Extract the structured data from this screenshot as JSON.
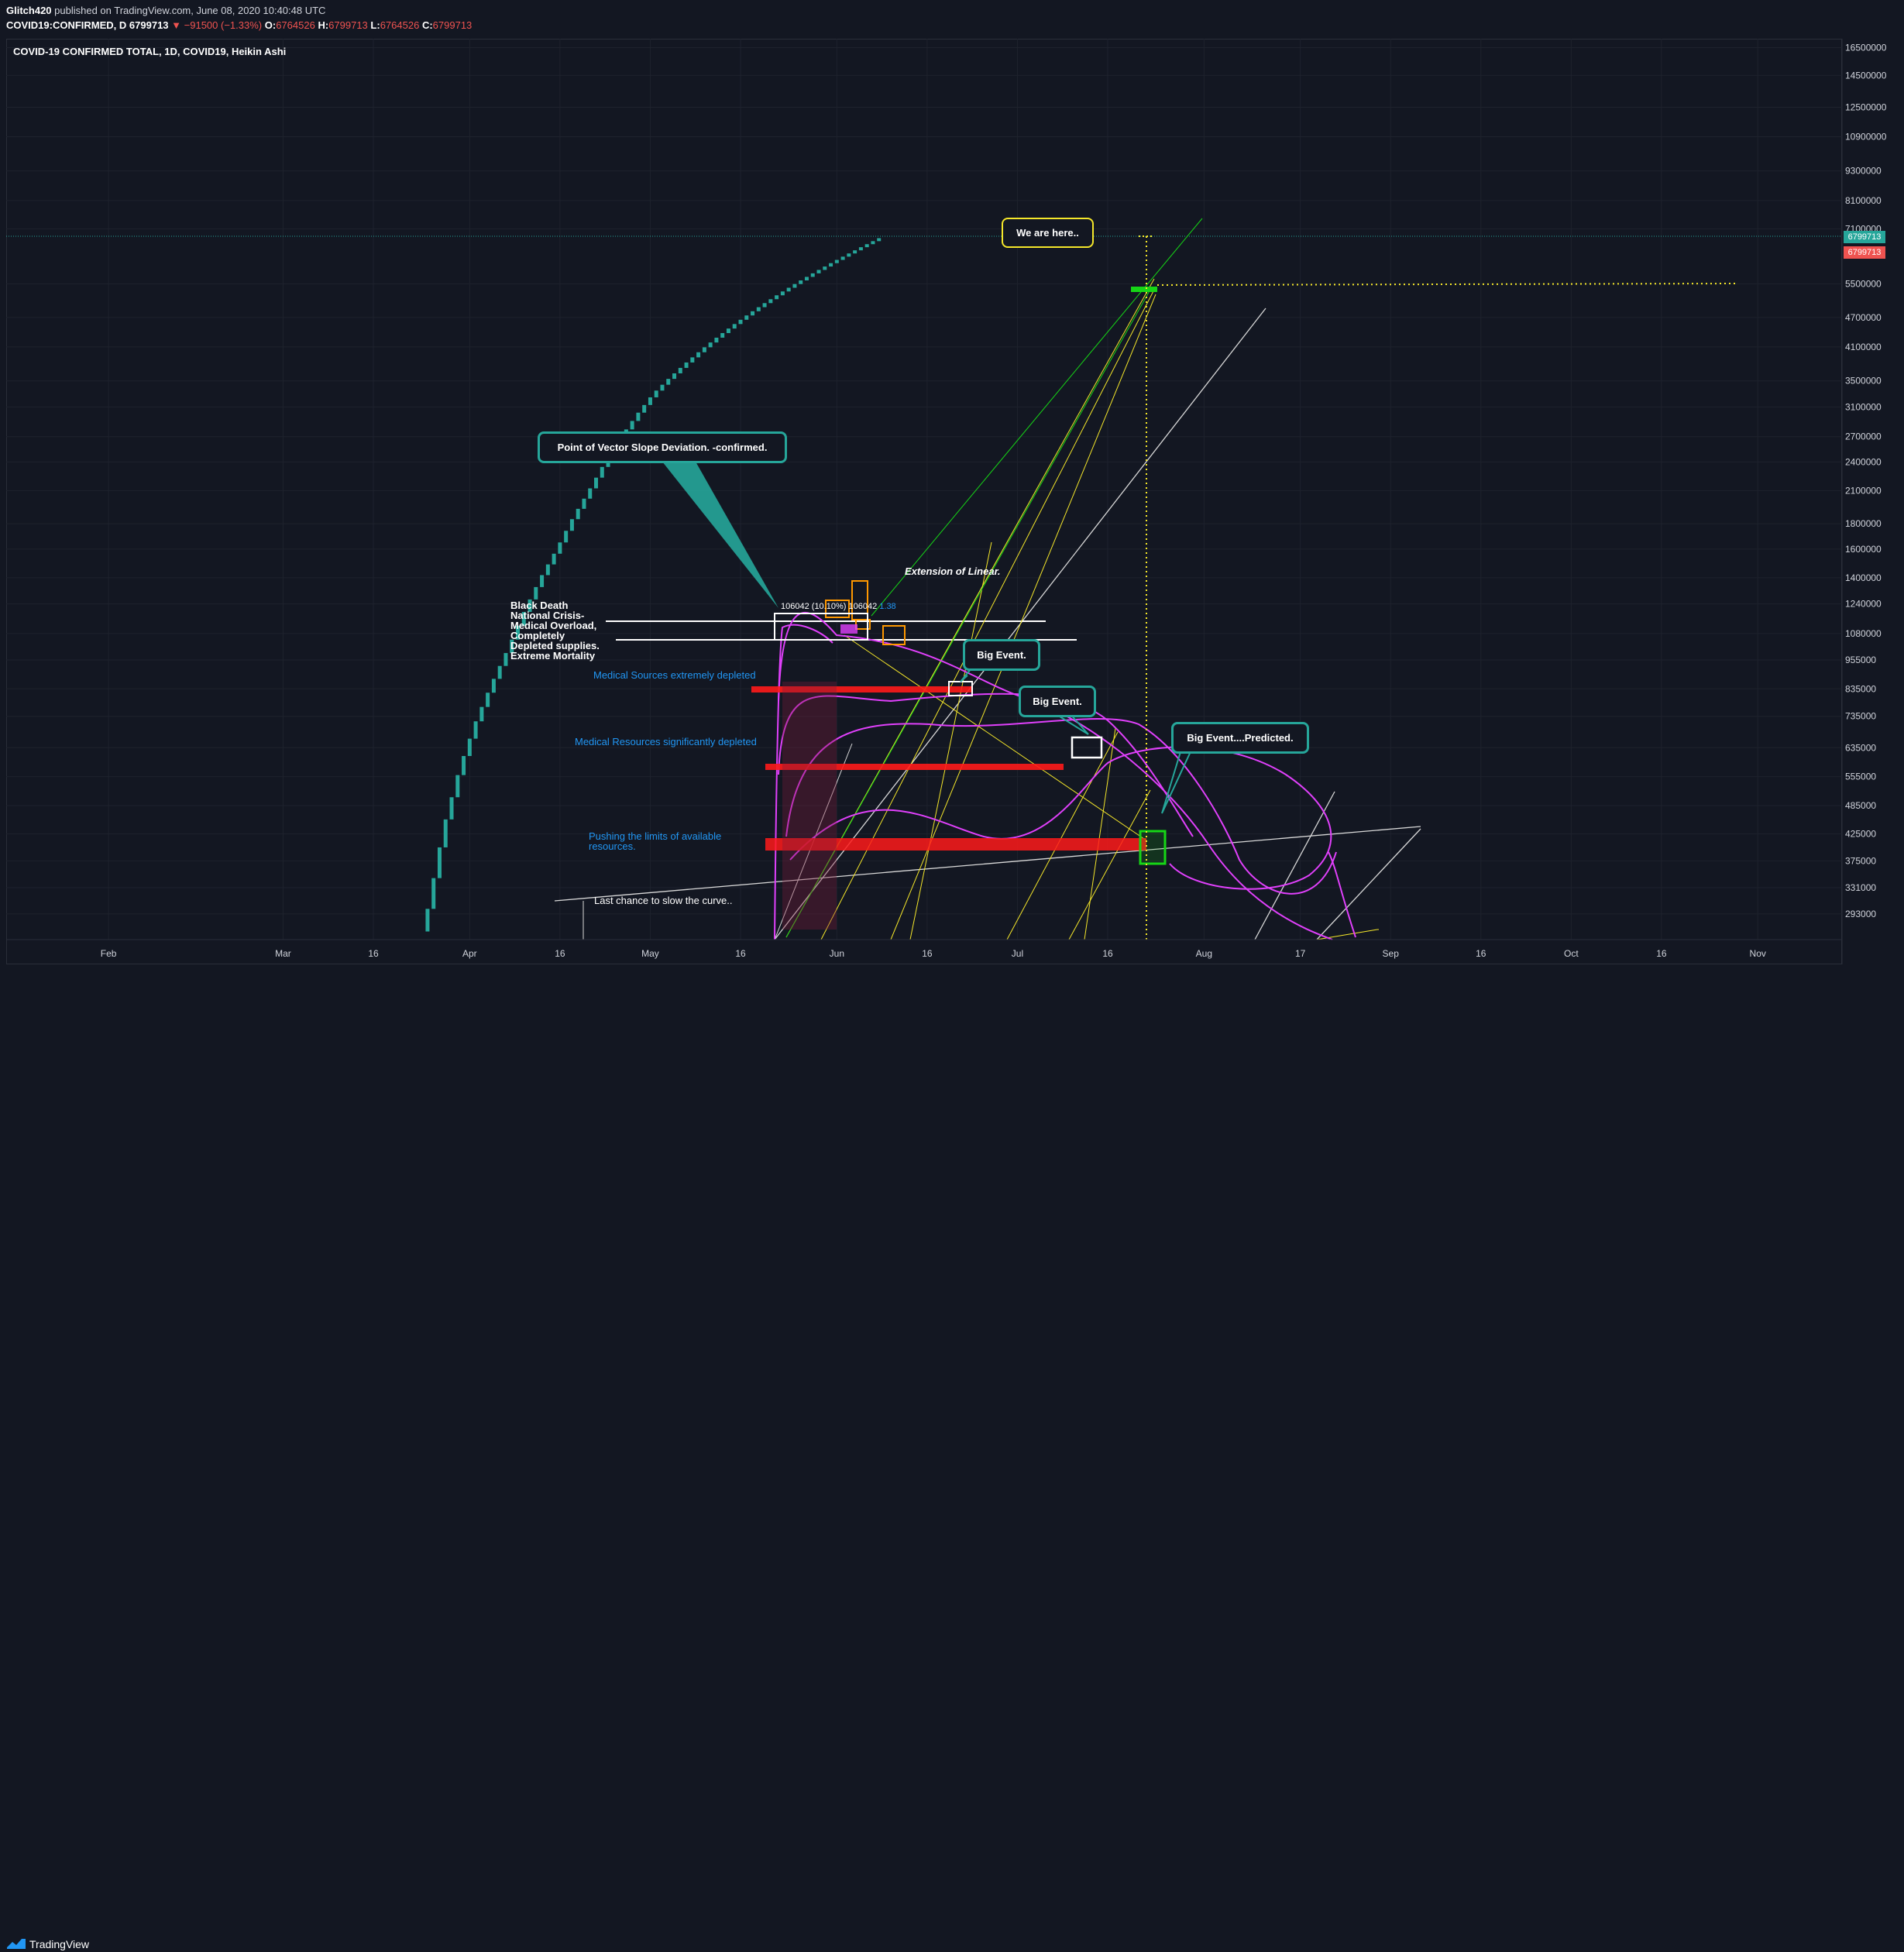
{
  "header": {
    "author": "Glitch420",
    "published_text": "published on TradingView.com, June 08, 2020 10:40:48 UTC",
    "symbol": "COVID19:CONFIRMED, D",
    "last": "6799713",
    "change": "▼ −91500 (−1.33%)",
    "open_label": "O:",
    "open": "6764526",
    "high_label": "H:",
    "high": "6799713",
    "low_label": "L:",
    "low": "6764526",
    "close_label": "C:",
    "close": "6799713"
  },
  "series_title": "COVID-19 CONFIRMED TOTAL, 1D, COVID19, Heikin Ashi",
  "footer": {
    "brand": "TradingView"
  },
  "colors": {
    "background": "#131722",
    "candle": "#26a69a",
    "price_badge": "#26a69a",
    "close_badge": "#ef5350",
    "magenta": "#e040fb",
    "yellow": "#f5e72a",
    "red_zone": "#ff1a1a",
    "teal_callout": "#26a69a",
    "blue_text": "#2196f3",
    "green": "#16d616"
  },
  "chart_data": {
    "type": "candlestick",
    "title": "COVID-19 CONFIRMED TOTAL, 1D, COVID19, Heikin Ashi",
    "scale": "log",
    "ylim": [
      260000,
      17200000
    ],
    "y_ticks": [
      16500000,
      14500000,
      12500000,
      10900000,
      9300000,
      8100000,
      7100000,
      5500000,
      4700000,
      4100000,
      3500000,
      3100000,
      2700000,
      2400000,
      2100000,
      1800000,
      1600000,
      1400000,
      1240000,
      1080000,
      955000,
      835000,
      735000,
      635000,
      555000,
      485000,
      425000,
      375000,
      331000,
      293000
    ],
    "price_badges": [
      6799713,
      6799713
    ],
    "x_ticks": [
      "Feb",
      "Mar",
      "16",
      "Apr",
      "16",
      "May",
      "16",
      "Jun",
      "16",
      "Jul",
      "16",
      "Aug",
      "17",
      "Sep",
      "16",
      "Oct",
      "16",
      "Nov"
    ],
    "candles_start": "2020-03-25",
    "candles_end": "2020-06-08",
    "values_approx": [
      300000,
      440000,
      580000,
      720000,
      860000,
      1010000,
      1200000,
      1400000,
      1600000,
      1850000,
      2100000,
      2400000,
      2700000,
      3000000,
      3300000,
      3550000,
      3800000,
      4050000,
      4300000,
      4550000,
      4800000,
      5050000,
      5300000,
      5550000,
      5800000,
      6050000,
      6300000,
      6550000,
      6799713
    ],
    "annotations": {
      "we_are_here": "We are here..",
      "vector_slope": "Point of Vector Slope Deviation. -confirmed.",
      "extension": "Extension of Linear.",
      "big_event_1": "Big Event.",
      "big_event_2": "Big Event.",
      "big_event_predicted": "Big Event....Predicted.",
      "crisis_lines": [
        "Black Death",
        "National Crisis-",
        "Medical Overload,",
        "Completely",
        "Depleted supplies.",
        "Extreme Mortality"
      ],
      "med_extreme": "Medical Sources extremely depleted",
      "med_significant": "Medical Resources significantly depleted",
      "pushing_lines": [
        "Pushing the limits of available",
        "resources."
      ],
      "last_chance": "Last chance to slow the curve..",
      "measure_left": "106042",
      "measure_mid": "(10.10%)",
      "measure_right": "106042",
      "measure_extra": "1.38"
    }
  }
}
